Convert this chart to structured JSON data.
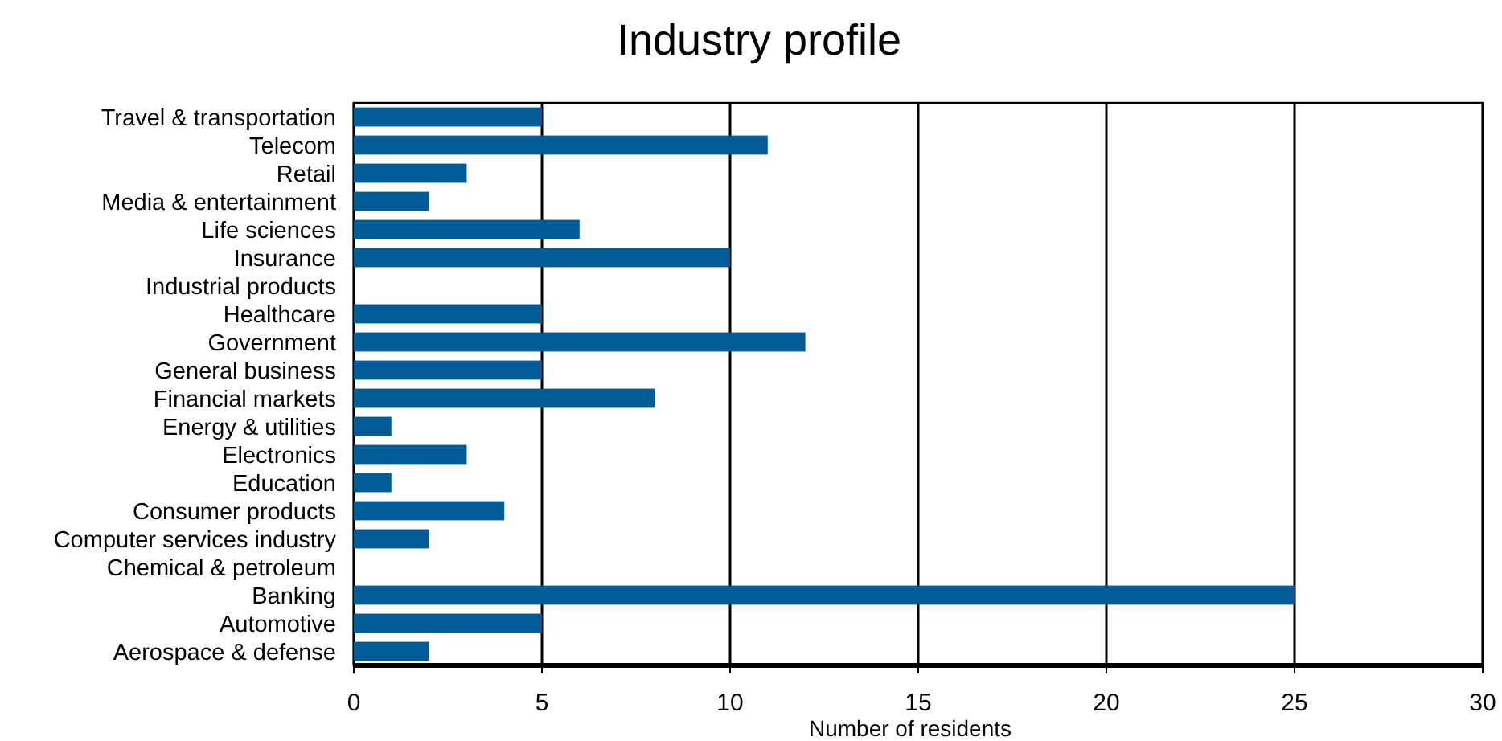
{
  "chart_data": {
    "type": "bar",
    "orientation": "horizontal",
    "title": "Industry profile",
    "xlabel": "Number of residents",
    "categories": [
      "Travel & transportation",
      "Telecom",
      "Retail",
      "Media & entertainment",
      "Life sciences",
      "Insurance",
      "Industrial products",
      "Healthcare",
      "Government",
      "General business",
      "Financial markets",
      "Energy & utilities",
      "Electronics",
      "Education",
      "Consumer products",
      "Computer services industry",
      "Chemical & petroleum",
      "Banking",
      "Automotive",
      "Aerospace & defense"
    ],
    "values": [
      5,
      11,
      3,
      2,
      6,
      10,
      0,
      5,
      12,
      5,
      8,
      1,
      3,
      1,
      4,
      2,
      0,
      25,
      5,
      2
    ],
    "color": "#005b97",
    "xlim": [
      0,
      30
    ],
    "xticks": [
      0,
      5,
      10,
      15,
      20,
      25,
      30
    ],
    "grid": "x"
  }
}
